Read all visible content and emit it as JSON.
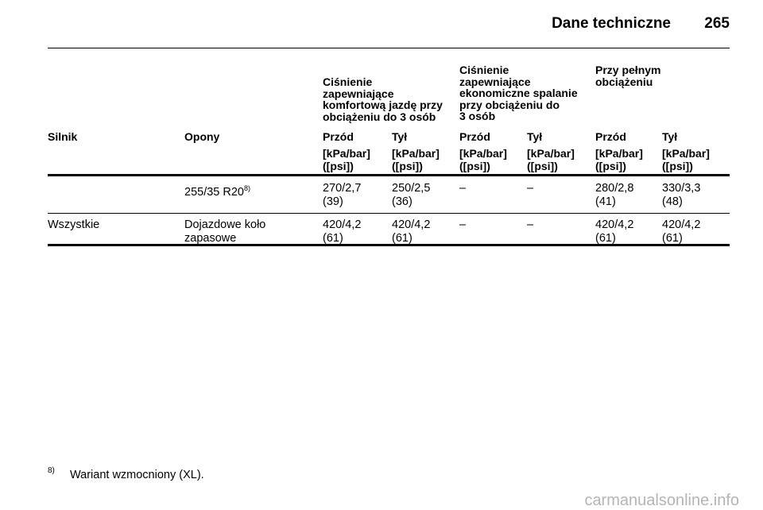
{
  "header": {
    "title": "Dane techniczne",
    "page": "265"
  },
  "table": {
    "groups": [
      {
        "lines": [
          "Ciśnienie",
          "zapewniające",
          "komfortową jazdę przy",
          "obciążeniu do 3 osób"
        ]
      },
      {
        "lines": [
          "Ciśnienie",
          "zapewniające",
          "ekonomiczne spalanie",
          "przy obciążeniu do",
          "3 osób"
        ]
      },
      {
        "lines": [
          "Przy pełnym",
          "obciążeniu"
        ]
      }
    ],
    "columns": [
      "Silnik",
      "Opony",
      "Przód",
      "Tył",
      "Przód",
      "Tył",
      "Przód",
      "Tył"
    ],
    "units": [
      [
        "[kPa/bar]",
        "([psi])"
      ],
      [
        "[kPa/bar]",
        "([psi])"
      ],
      [
        "[kPa/bar]",
        "([psi])"
      ],
      [
        "[kPa/bar]",
        "([psi])"
      ],
      [
        "[kPa/bar]",
        "([psi])"
      ],
      [
        "[kPa/bar]",
        "([psi])"
      ]
    ],
    "rows": [
      {
        "tire": [
          "255/35 R20"
        ],
        "note": "8)",
        "values": [
          [
            "270/2,7",
            "(39)"
          ],
          [
            "250/2,5",
            "(36)"
          ],
          [
            "–"
          ],
          [
            "–"
          ],
          [
            "280/2,8",
            "(41)"
          ],
          [
            "330/3,3",
            "(48)"
          ]
        ]
      },
      {
        "engine": "Wszystkie",
        "tire": [
          "Dojazdowe koło",
          "zapasowe"
        ],
        "values": [
          [
            "420/4,2",
            "(61)"
          ],
          [
            "420/4,2",
            "(61)"
          ],
          [
            "–"
          ],
          [
            "–"
          ],
          [
            "420/4,2",
            "(61)"
          ],
          [
            "420/4,2",
            "(61)"
          ]
        ]
      }
    ]
  },
  "footnote": {
    "mark": "8)",
    "text": "Wariant wzmocniony (XL)."
  },
  "watermark": "carmanualsonline.info"
}
